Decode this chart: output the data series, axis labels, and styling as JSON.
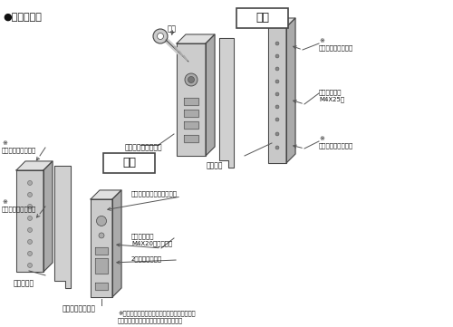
{
  "title": "●取付概略図",
  "bg": "#ffffff",
  "tc": "#111111",
  "lc": "#555555",
  "ec": "#444444",
  "pfl": "#e0e0e0",
  "pfm": "#cccccc",
  "pfd": "#aaaaaa",
  "outer_label": "外側",
  "inner_label": "内側",
  "key_label": "キー",
  "outside_body_label": "アウトサイドボディ",
  "drill1": "※\nドリルタッピンネジ",
  "drill2": "※\nドリルタッピンネジ",
  "drill3": "※\nドリルタッピンネジ",
  "drill4": "※\nドリルタッピンネジ",
  "lock_plate_label": "鍵受け板",
  "outer_screw_label": "外錠取付ネジ\nM4X25皿",
  "inner_screw_label": "内錠取付ネジ\nM4X20（頭通錠）",
  "double_lock_label": "2重ロックツマミ",
  "inside_case_label": "内錠ケース",
  "inside_body_label": "インサイドボディ",
  "align_label": "取付位置合せ、施解錠表示",
  "footer": "※ドリルタッピンネジは取付ネジを締めつけて\n　作動を確認してから固定して下さい。"
}
